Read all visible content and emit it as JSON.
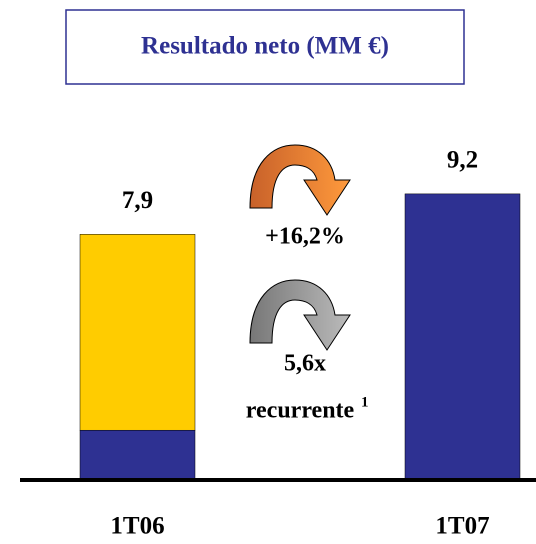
{
  "chart_data": {
    "type": "bar",
    "stacked": true,
    "title": "Resultado neto (MM €)",
    "categories": [
      "1T06",
      "1T07"
    ],
    "series": [
      {
        "color": "#2e3192",
        "values": [
          1.6,
          9.2
        ]
      },
      {
        "color": "#ffcc00",
        "values": [
          6.3,
          null
        ]
      }
    ],
    "totals": [
      7.9,
      9.2
    ],
    "total_labels": [
      "7,9",
      "9,2"
    ],
    "ylim": [
      0,
      10
    ],
    "annotations": [
      "+16,2%",
      "5,6x",
      "recurrente",
      "1"
    ]
  }
}
